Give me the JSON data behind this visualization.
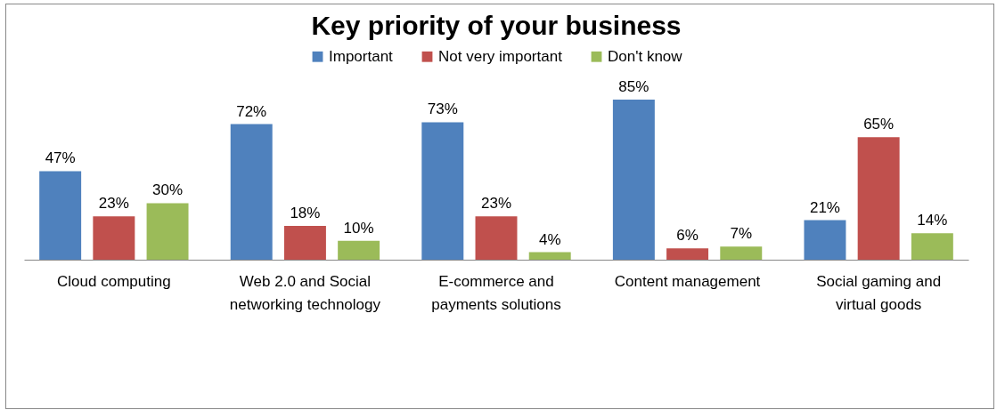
{
  "chart_data": {
    "type": "bar",
    "title": "Key priority of your business",
    "categories": [
      "Cloud computing",
      "Web 2.0 and Social networking technology",
      "E-commerce and payments solutions",
      "Content management",
      "Social gaming and virtual goods"
    ],
    "series": [
      {
        "name": "Important",
        "color": "#4f81bd",
        "values": [
          47,
          72,
          73,
          85,
          21
        ],
        "value_labels": [
          "47%",
          "72%",
          "73%",
          "85%",
          "21%"
        ]
      },
      {
        "name": "Not very important",
        "color": "#c0504d",
        "values": [
          23,
          18,
          23,
          6,
          65
        ],
        "value_labels": [
          "23%",
          "18%",
          "23%",
          "6%",
          "65%"
        ]
      },
      {
        "name": "Don't know",
        "color": "#9bbb59",
        "values": [
          30,
          10,
          4,
          7,
          14
        ],
        "value_labels": [
          "30%",
          "10%",
          "4%",
          "7%",
          "14%"
        ]
      }
    ],
    "legend": "top"
  }
}
